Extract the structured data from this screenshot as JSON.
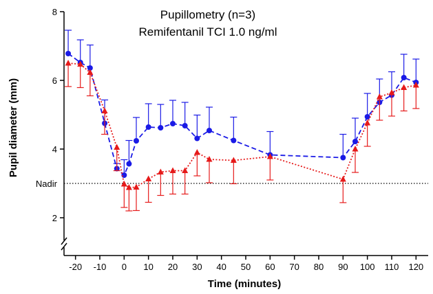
{
  "chart_data": {
    "type": "line",
    "title": "Pupillometry (n=3)",
    "subtitle": "Remifentanil TCI 1.0 ng/ml",
    "xlabel": "Time (minutes)",
    "ylabel": "Pupil diameter (mm)",
    "xlim": [
      -25,
      125
    ],
    "ylim": [
      1,
      8
    ],
    "y_axis_break": true,
    "xticks": [
      -20,
      -10,
      0,
      10,
      20,
      30,
      40,
      50,
      60,
      70,
      80,
      90,
      100,
      110,
      120
    ],
    "yticks": [
      2,
      4,
      6,
      8
    ],
    "grid": false,
    "legend": "none",
    "reference_line": {
      "label": "Nadir",
      "y": 3.0,
      "style": "dotted",
      "color": "#000000"
    },
    "series": [
      {
        "color": "#1a1ae6",
        "marker": "circle",
        "line_style": "dashed",
        "error": "upper",
        "points": [
          {
            "x": -23,
            "y": 6.78,
            "err": 0.68
          },
          {
            "x": -18,
            "y": 6.52,
            "err": 0.66
          },
          {
            "x": -14,
            "y": 6.36,
            "err": 0.67
          },
          {
            "x": -8,
            "y": 4.75,
            "err": 0.68
          },
          {
            "x": -3,
            "y": 3.43,
            "err": 0.15
          },
          {
            "x": 0,
            "y": 3.24,
            "err": 0.45
          },
          {
            "x": 2,
            "y": 3.57,
            "err": 0.68
          },
          {
            "x": 5,
            "y": 4.24,
            "err": 0.68
          },
          {
            "x": 10,
            "y": 4.64,
            "err": 0.68
          },
          {
            "x": 15,
            "y": 4.62,
            "err": 0.68
          },
          {
            "x": 20,
            "y": 4.74,
            "err": 0.68
          },
          {
            "x": 25,
            "y": 4.68,
            "err": 0.68
          },
          {
            "x": 30,
            "y": 4.31,
            "err": 0.68
          },
          {
            "x": 35,
            "y": 4.54,
            "err": 0.68
          },
          {
            "x": 45,
            "y": 4.25,
            "err": 0.68
          },
          {
            "x": 60,
            "y": 3.83,
            "err": 0.68
          },
          {
            "x": 90,
            "y": 3.75,
            "err": 0.68
          },
          {
            "x": 95,
            "y": 4.22,
            "err": 0.68
          },
          {
            "x": 100,
            "y": 4.94,
            "err": 0.68
          },
          {
            "x": 105,
            "y": 5.36,
            "err": 0.68
          },
          {
            "x": 110,
            "y": 5.57,
            "err": 0.68
          },
          {
            "x": 115,
            "y": 6.08,
            "err": 0.68
          },
          {
            "x": 120,
            "y": 5.94,
            "err": 0.68
          }
        ]
      },
      {
        "color": "#e61a1a",
        "marker": "triangle",
        "line_style": "dotted",
        "error": "lower",
        "points": [
          {
            "x": -23,
            "y": 6.5,
            "err": 0.68
          },
          {
            "x": -18,
            "y": 6.47,
            "err": 0.68
          },
          {
            "x": -14,
            "y": 6.23,
            "err": 0.68
          },
          {
            "x": -8,
            "y": 5.11,
            "err": 0.68
          },
          {
            "x": -3,
            "y": 4.05,
            "err": 0.68
          },
          {
            "x": 0,
            "y": 2.98,
            "err": 0.68
          },
          {
            "x": 2,
            "y": 2.88,
            "err": 0.68
          },
          {
            "x": 5,
            "y": 2.89,
            "err": 0.68
          },
          {
            "x": 10,
            "y": 3.13,
            "err": 0.68
          },
          {
            "x": 15,
            "y": 3.33,
            "err": 0.68
          },
          {
            "x": 20,
            "y": 3.37,
            "err": 0.68
          },
          {
            "x": 25,
            "y": 3.37,
            "err": 0.68
          },
          {
            "x": 30,
            "y": 3.9,
            "err": 0.68
          },
          {
            "x": 35,
            "y": 3.7,
            "err": 0.68
          },
          {
            "x": 45,
            "y": 3.67,
            "err": 0.68
          },
          {
            "x": 60,
            "y": 3.78,
            "err": 0.68
          },
          {
            "x": 90,
            "y": 3.12,
            "err": 0.68
          },
          {
            "x": 95,
            "y": 4.0,
            "err": 0.68
          },
          {
            "x": 100,
            "y": 4.76,
            "err": 0.68
          },
          {
            "x": 105,
            "y": 5.52,
            "err": 0.68
          },
          {
            "x": 110,
            "y": 5.64,
            "err": 0.68
          },
          {
            "x": 115,
            "y": 5.79,
            "err": 0.68
          },
          {
            "x": 120,
            "y": 5.86,
            "err": 0.68
          }
        ]
      }
    ]
  }
}
